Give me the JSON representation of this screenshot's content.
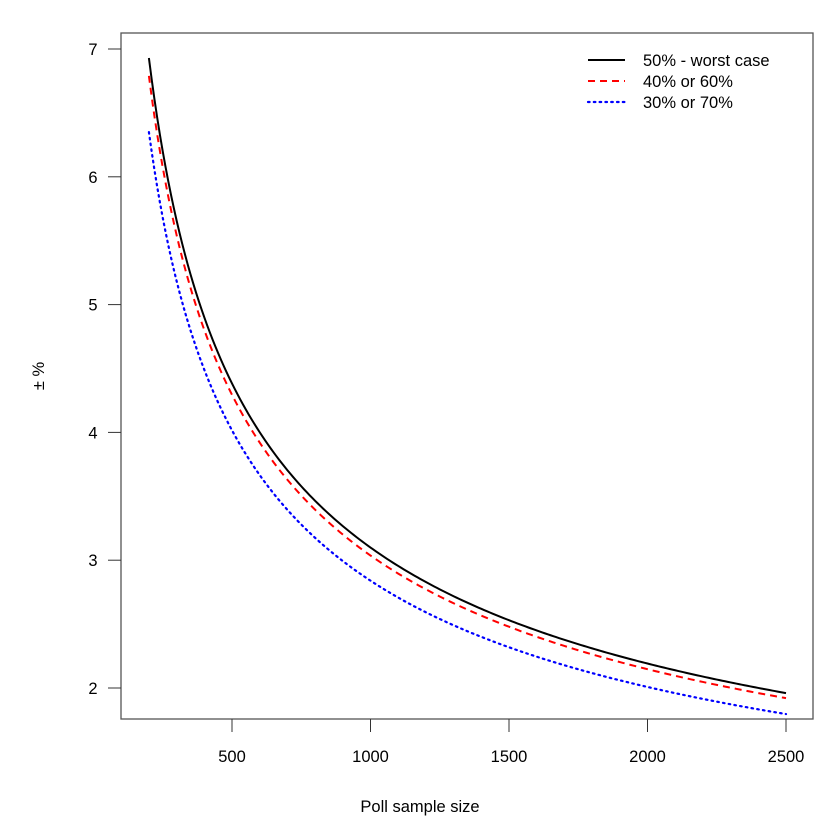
{
  "chart_data": {
    "type": "line",
    "title": "",
    "xlabel": "Poll sample size",
    "ylabel": "± %",
    "xlim": [
      200,
      2500
    ],
    "ylim": [
      1.75,
      7.12
    ],
    "xticks": [
      500,
      1000,
      1500,
      2000,
      2500
    ],
    "yticks": [
      2,
      3,
      4,
      5,
      6,
      7
    ],
    "grid": false,
    "legend_position": "top-right",
    "x": [
      200,
      300,
      400,
      500,
      600,
      700,
      800,
      900,
      1000,
      1100,
      1200,
      1300,
      1400,
      1500,
      1600,
      1700,
      1800,
      1900,
      2000,
      2100,
      2200,
      2300,
      2400,
      2500
    ],
    "series": [
      {
        "name": "50% - worst case",
        "color": "#000000",
        "dash": "solid",
        "values": [
          6.93,
          5.66,
          4.9,
          4.38,
          4.0,
          3.7,
          3.46,
          3.27,
          3.1,
          2.95,
          2.83,
          2.72,
          2.62,
          2.53,
          2.45,
          2.38,
          2.31,
          2.25,
          2.19,
          2.14,
          2.09,
          2.04,
          2.0,
          1.96
        ]
      },
      {
        "name": "40% or 60%",
        "color": "#ff0000",
        "dash": "dashed",
        "values": [
          6.79,
          5.54,
          4.8,
          4.29,
          3.92,
          3.63,
          3.39,
          3.2,
          3.04,
          2.9,
          2.77,
          2.66,
          2.57,
          2.48,
          2.4,
          2.33,
          2.26,
          2.2,
          2.15,
          2.1,
          2.05,
          2.0,
          1.96,
          1.92
        ]
      },
      {
        "name": "30% or 70%",
        "color": "#0000ff",
        "dash": "dotted",
        "values": [
          6.35,
          5.19,
          4.49,
          4.02,
          3.67,
          3.39,
          3.18,
          2.99,
          2.84,
          2.71,
          2.59,
          2.49,
          2.4,
          2.32,
          2.25,
          2.18,
          2.12,
          2.06,
          2.01,
          1.96,
          1.91,
          1.87,
          1.83,
          1.8
        ]
      }
    ]
  }
}
